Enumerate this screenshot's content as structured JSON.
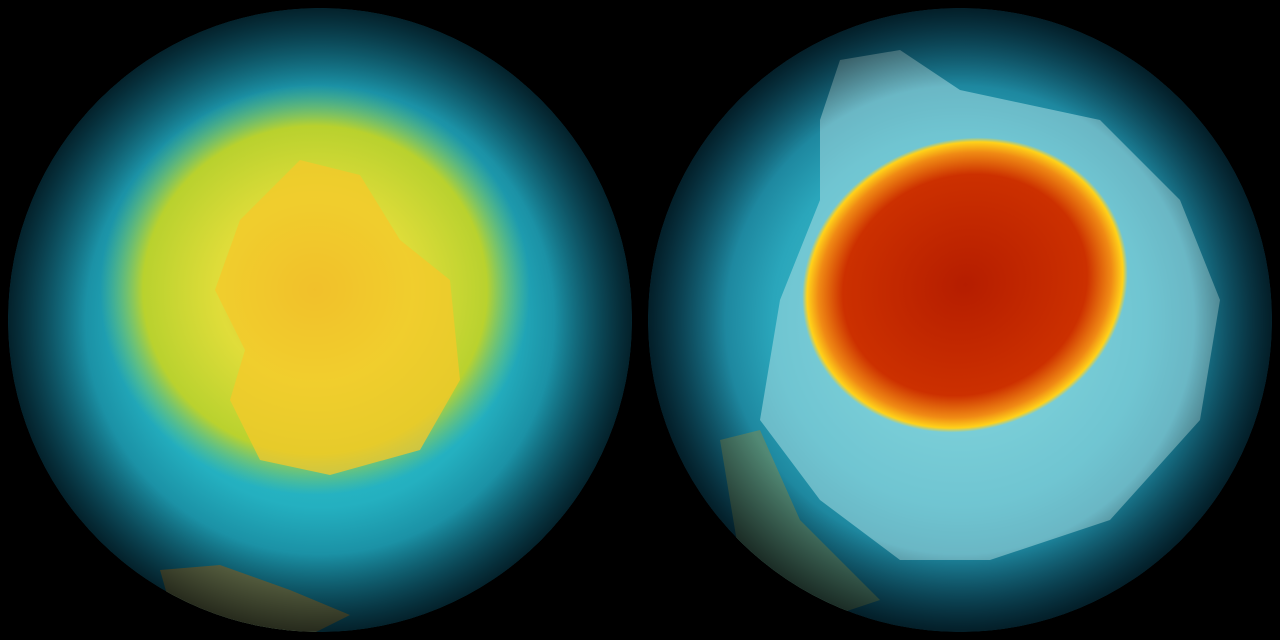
{
  "image": {
    "panels": [
      {
        "subject": "globe-left",
        "colors": {
          "ocean": "#0e6f8a",
          "ring": "#1fb3c4",
          "hole": "#e8d21a",
          "core": "#f7b81e",
          "land": "#6f7a52"
        }
      },
      {
        "subject": "globe-right",
        "colors": {
          "ocean": "#0e6f8a",
          "ice": "#a9dfe4",
          "ring": "#ffd21a",
          "hole": "#c42a05",
          "core": "#b82000"
        }
      }
    ],
    "background": "#000000"
  }
}
